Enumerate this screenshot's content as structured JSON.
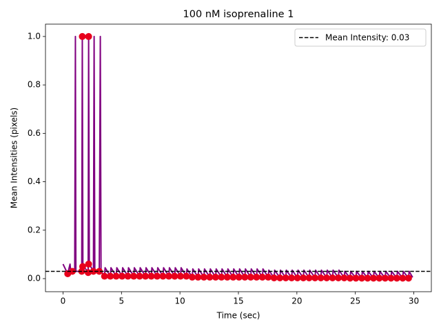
{
  "chart_data": {
    "type": "line",
    "title": "100 nM isoprenaline 1",
    "x_label": "Time (sec)",
    "y_label": "Mean Intensities (pixels)",
    "xlim": [
      -1.5,
      31.5
    ],
    "ylim": [
      -0.054,
      1.051
    ],
    "xticks": [
      0,
      5,
      10,
      15,
      20,
      25,
      30
    ],
    "yticks": [
      {
        "value": 0,
        "label": "0.0"
      },
      {
        "value": 0.2,
        "label": "0.2"
      },
      {
        "value": 0.4,
        "label": "0.4"
      },
      {
        "value": 0.6,
        "label": "0.6"
      },
      {
        "value": 0.8,
        "label": "0.8"
      },
      {
        "value": 1.0,
        "label": "1.0"
      }
    ],
    "legend": "upper right",
    "series": [
      {
        "type": "line",
        "color": "#800080",
        "x": [
          0,
          0.05,
          0.4,
          0.6,
          0.65,
          1.0,
          1.06,
          1.1,
          1.6,
          1.65,
          1.7,
          2.15,
          2.19,
          2.25,
          2.6,
          2.66,
          2.72,
          3.1,
          3.19,
          3.25,
          3.55,
          3.6,
          4.05,
          4.1,
          4.55,
          4.6,
          5.05,
          5.1,
          5.55,
          5.6,
          6.05,
          6.1,
          6.55,
          6.6,
          7.05,
          7.1,
          7.55,
          7.6,
          8.05,
          8.1,
          8.55,
          8.6,
          9.05,
          9.1,
          9.55,
          9.6,
          10.05,
          10.1,
          10.55,
          10.6,
          11.05,
          11.1,
          11.55,
          11.6,
          12.05,
          12.1,
          12.55,
          12.6,
          13.05,
          13.1,
          13.55,
          13.6,
          14.05,
          14.1,
          14.55,
          14.6,
          15.05,
          15.1,
          15.55,
          15.6,
          16.05,
          16.1,
          16.55,
          16.6,
          17.05,
          17.1,
          17.55,
          17.6,
          18.05,
          18.1,
          18.55,
          18.6,
          19.05,
          19.1,
          19.55,
          19.6,
          20.05,
          20.1,
          20.55,
          20.6,
          21.05,
          21.1,
          21.55,
          21.6,
          22.05,
          22.1,
          22.55,
          22.6,
          23.05,
          23.1,
          23.55,
          23.6,
          24.05,
          24.1,
          24.55,
          24.6,
          25.05,
          25.1,
          25.55,
          25.6,
          26.05,
          26.1,
          26.55,
          26.6,
          27.05,
          27.1,
          27.55,
          27.6,
          28.05,
          28.1,
          28.55,
          28.6,
          29.05,
          29.1,
          29.55,
          29.6,
          29.9
        ],
        "values": [
          0.06,
          0.055,
          0.02,
          0.06,
          0.035,
          0.03,
          1.0,
          0.03,
          0.03,
          1.0,
          0.05,
          0.03,
          1.0,
          0.06,
          0.03,
          1.0,
          0.03,
          0.03,
          1.0,
          0.03,
          0.01,
          0.045,
          0.01,
          0.045,
          0.01,
          0.045,
          0.01,
          0.045,
          0.01,
          0.045,
          0.01,
          0.045,
          0.01,
          0.045,
          0.01,
          0.045,
          0.01,
          0.045,
          0.01,
          0.045,
          0.01,
          0.045,
          0.01,
          0.045,
          0.01,
          0.045,
          0.01,
          0.045,
          0.01,
          0.04,
          0.006,
          0.04,
          0.006,
          0.04,
          0.006,
          0.04,
          0.006,
          0.04,
          0.006,
          0.04,
          0.006,
          0.04,
          0.006,
          0.04,
          0.006,
          0.04,
          0.006,
          0.04,
          0.006,
          0.04,
          0.006,
          0.04,
          0.006,
          0.04,
          0.006,
          0.04,
          0.006,
          0.035,
          0.003,
          0.035,
          0.003,
          0.035,
          0.003,
          0.035,
          0.003,
          0.035,
          0.003,
          0.035,
          0.003,
          0.035,
          0.003,
          0.035,
          0.003,
          0.035,
          0.003,
          0.035,
          0.003,
          0.035,
          0.003,
          0.035,
          0.003,
          0.035,
          0.003,
          0.03,
          0.002,
          0.03,
          0.002,
          0.03,
          0.002,
          0.03,
          0.002,
          0.03,
          0.002,
          0.03,
          0.002,
          0.03,
          0.002,
          0.03,
          0.002,
          0.03,
          0.002,
          0.03,
          0.002,
          0.03,
          0.002,
          0.03,
          0.005
        ]
      },
      {
        "type": "scatter",
        "color": "#e8001c",
        "x": [
          0.4,
          0.8,
          1.6,
          1.65,
          1.68,
          2.15,
          2.19,
          2.19,
          2.6,
          3.1,
          3.55,
          4.05,
          4.55,
          5.05,
          5.55,
          6.05,
          6.55,
          7.05,
          7.55,
          8.05,
          8.55,
          9.05,
          9.55,
          10.05,
          10.55,
          11.05,
          11.55,
          12.05,
          12.55,
          13.05,
          13.55,
          14.05,
          14.55,
          15.05,
          15.55,
          16.05,
          16.55,
          17.05,
          17.55,
          18.05,
          18.55,
          19.05,
          19.55,
          20.05,
          20.55,
          21.05,
          21.55,
          22.05,
          22.55,
          23.05,
          23.55,
          24.05,
          24.55,
          25.05,
          25.55,
          26.05,
          26.55,
          27.05,
          27.55,
          28.05,
          28.55,
          29.05,
          29.55
        ],
        "values": [
          0.02,
          0.03,
          0.03,
          1.0,
          0.05,
          0.025,
          1.0,
          0.06,
          0.03,
          0.03,
          0.01,
          0.01,
          0.01,
          0.01,
          0.01,
          0.01,
          0.01,
          0.01,
          0.01,
          0.01,
          0.01,
          0.01,
          0.01,
          0.01,
          0.01,
          0.006,
          0.006,
          0.006,
          0.006,
          0.006,
          0.006,
          0.006,
          0.006,
          0.006,
          0.006,
          0.006,
          0.006,
          0.006,
          0.006,
          0.003,
          0.003,
          0.003,
          0.003,
          0.003,
          0.003,
          0.003,
          0.003,
          0.003,
          0.003,
          0.003,
          0.003,
          0.003,
          0.002,
          0.002,
          0.002,
          0.002,
          0.002,
          0.002,
          0.002,
          0.002,
          0.002,
          0.002,
          0.002
        ]
      }
    ],
    "hline": {
      "value": 0.03,
      "label": "Mean Intensity: 0.03",
      "color": "#000000",
      "dashed": true
    }
  }
}
